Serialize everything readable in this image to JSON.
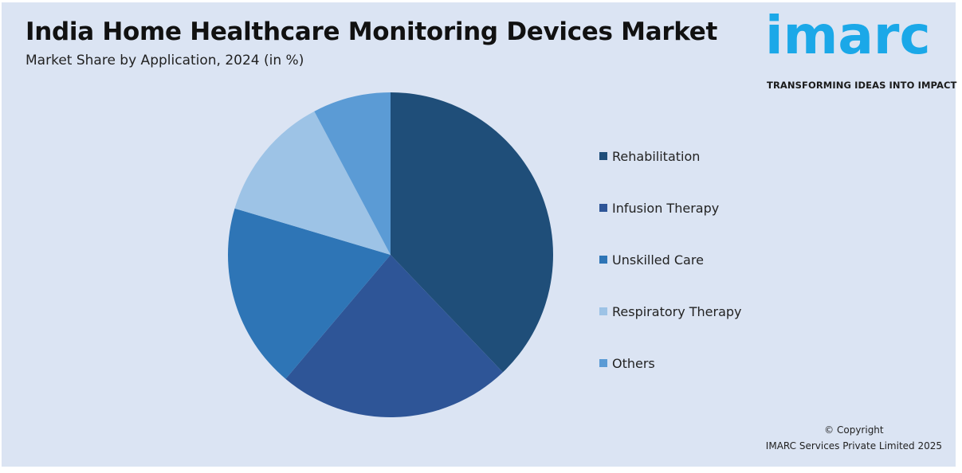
{
  "title": "India Home Healthcare Monitoring Devices Market",
  "subtitle": "Market Share by Application, 2024 (in %)",
  "logo": {
    "word": "imarc",
    "tagline": "TRANSFORMING IDEAS INTO IMPACT",
    "color": "#1ba8e8"
  },
  "copyright": {
    "line1": "© Copyright",
    "line2": "IMARC Services Private Limited 2025"
  },
  "chart_data": {
    "type": "pie",
    "title": "India Home Healthcare Monitoring Devices Market",
    "subtitle": "Market Share by Application, 2024 (in %)",
    "legend_position": "right",
    "slices": [
      {
        "label": "Rehabilitation",
        "value": 39,
        "color": "#1f4e79"
      },
      {
        "label": "Infusion Therapy",
        "value": 24,
        "color": "#2e5597"
      },
      {
        "label": "Unskilled Care",
        "value": 19,
        "color": "#2e75b6"
      },
      {
        "label": "Respiratory Therapy",
        "value": 13,
        "color": "#9dc3e6"
      },
      {
        "label": "Others",
        "value": 8,
        "color": "#5b9bd5"
      }
    ]
  }
}
